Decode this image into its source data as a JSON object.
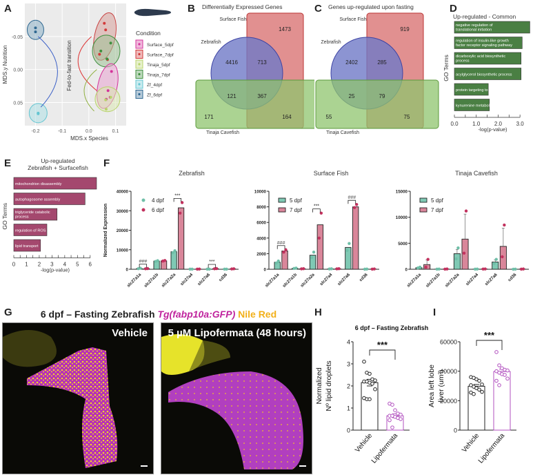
{
  "panel_labels": {
    "A": "A",
    "B": "B",
    "C": "C",
    "D": "D",
    "E": "E",
    "F": "F",
    "G": "G",
    "H": "H",
    "I": "I"
  },
  "chart_data": [
    {
      "id": "A",
      "type": "scatter",
      "title": "",
      "xlabel": "MDS.x  Species",
      "ylabel": "MDS.y  Nutrition",
      "xlim": [
        -0.24,
        0.14
      ],
      "ylim": [
        0.085,
        -0.1
      ],
      "xticks": [
        "-0.2",
        "-0.1",
        "0.0",
        "0.1"
      ],
      "xtick_values": [
        -0.2,
        -0.1,
        0.0,
        0.1
      ],
      "yticks": [
        "-0.05",
        "0.00",
        "0.05"
      ],
      "ytick_values": [
        -0.05,
        0.0,
        0.05
      ],
      "annotation": "Fed-to-fast transition",
      "legend_title": "Condition",
      "legend_position": "right",
      "series": [
        {
          "name": "Surface_5dpf",
          "color": "#d4339a",
          "points": [
            [
              0.085,
              0.003
            ],
            [
              0.072,
              0.032
            ],
            [
              0.065,
              0.045
            ],
            [
              0.08,
              0.042
            ]
          ]
        },
        {
          "name": "Surface_7dpf",
          "color": "#d23a3a",
          "points": [
            [
              0.058,
              -0.07
            ],
            [
              0.063,
              -0.06
            ],
            [
              0.04,
              -0.023
            ],
            [
              0.07,
              -0.015
            ]
          ]
        },
        {
          "name": "Tinaja_5dpf",
          "color": "#b8d36b",
          "points": [
            [
              0.065,
              0.06
            ],
            [
              0.063,
              0.046
            ],
            [
              0.082,
              0.042
            ]
          ]
        },
        {
          "name": "Tinaja_7dpf",
          "color": "#3f8f3f",
          "points": [
            [
              0.045,
              -0.028
            ],
            [
              0.082,
              -0.04
            ],
            [
              0.068,
              -0.016
            ]
          ]
        },
        {
          "name": "Zf_4dpf",
          "color": "#63c5d1",
          "points": [
            [
              -0.19,
              0.066
            ],
            [
              -0.19,
              0.067
            ]
          ]
        },
        {
          "name": "Zf_6dpf",
          "color": "#2f6891",
          "points": [
            [
              -0.2,
              -0.063
            ],
            [
              -0.2,
              -0.057
            ]
          ]
        }
      ]
    },
    {
      "id": "B",
      "type": "venn",
      "title": "Differentially Expressed Genes",
      "sets": [
        "Surface Fish",
        "Zebrafish",
        "Tinaja Cavefish"
      ],
      "regions": {
        "surface_only": 1473,
        "zebrafish_only": 4416,
        "zebrafish_surface": 713,
        "zebrafish_tinaja": 121,
        "all_three": 367,
        "tinaja_only": 171,
        "surface_tinaja": 164
      }
    },
    {
      "id": "C",
      "type": "venn",
      "title": "Genes up-regulated upon fasting",
      "sets": [
        "Surface Fish",
        "Zebrafish",
        "Tinaja Cavefish"
      ],
      "regions": {
        "surface_only": 919,
        "zebrafish_only": 2402,
        "zebrafish_surface": 285,
        "zebrafish_tinaja": 25,
        "all_three": 79,
        "tinaja_only": 55,
        "surface_tinaja": 75
      }
    },
    {
      "id": "D",
      "type": "bar",
      "orientation": "horizontal",
      "title": "Up-regulated - Common",
      "ylabel": "GO Terms",
      "xlabel": "-log(p-value)",
      "xlim": [
        0,
        3.5
      ],
      "xticks": [
        "0.0",
        "1.0",
        "2.0",
        "3.0"
      ],
      "xtick_values": [
        0,
        1,
        2,
        3
      ],
      "color": "#4a7f43",
      "categories": [
        "negative regulation of translational initiation",
        "regulation of insulin-like growth factor receptor signaling pathway",
        "dicarboxylic acid biosynthetic process",
        "acylglycerol biosynthetic process",
        "protein targeting to peroxisome",
        "kynurenine metabolism"
      ],
      "values": [
        3.45,
        3.1,
        3.05,
        3.05,
        1.55,
        1.6
      ]
    },
    {
      "id": "E",
      "type": "bar",
      "orientation": "horizontal",
      "title": "Up-regulated\nZebrafish + Surfacefish",
      "title_lines": [
        "Up-regulated",
        "Zebrafish + Surfacefish"
      ],
      "ylabel": "GO Terms",
      "xlabel": "-log(p-value)",
      "xlim": [
        0,
        6.5
      ],
      "xticks": [
        "0",
        "1",
        "2",
        "3",
        "4",
        "5",
        "6"
      ],
      "xtick_values": [
        0,
        1,
        2,
        3,
        4,
        5,
        6
      ],
      "color": "#a4486e",
      "categories": [
        "mitochondrion disassembly",
        "autophagosome assembly",
        "triglyceride catabolic process",
        "regulation of ROS",
        "lipid transport"
      ],
      "values": [
        6.5,
        5.6,
        3.4,
        2.6,
        2.1
      ]
    },
    {
      "id": "F1",
      "type": "bar",
      "title": "Zebrafish",
      "ylabel": "Normalized Expression",
      "ylim": [
        0,
        40000
      ],
      "yticks": [
        "0",
        "10000",
        "20000",
        "30000",
        "40000"
      ],
      "ytick_values": [
        0,
        10000,
        20000,
        30000,
        40000
      ],
      "categories": [
        "slc27a1a",
        "slc27a1b",
        "slc27a2a",
        "slc27a4",
        "slc27a6",
        "cd36"
      ],
      "legend_style": "dot",
      "series": [
        {
          "name": "4 dpf",
          "color": "#7fc9b4",
          "values": [
            400,
            4200,
            9000,
            60,
            60,
            60
          ],
          "points": [
            [
              300,
              500
            ],
            [
              4000,
              4400
            ],
            [
              8500,
              9500
            ],
            [
              50,
              80
            ],
            [
              50,
              80
            ],
            [
              50,
              80
            ]
          ]
        },
        {
          "name": "6 dpf",
          "color": "#d9869a",
          "dot_color": "#c2315e",
          "values": [
            300,
            4300,
            31500,
            90,
            300,
            200
          ],
          "points": [
            [
              250,
              350
            ],
            [
              4200,
              4500
            ],
            [
              28800,
              34200
            ],
            [
              80,
              100
            ],
            [
              250,
              350
            ],
            [
              150,
              250
            ]
          ]
        }
      ],
      "significance": [
        {
          "category": "slc27a1a",
          "label": "###"
        },
        {
          "category": "slc27a2a",
          "label": "***"
        },
        {
          "category": "slc27a6",
          "label": "***"
        }
      ]
    },
    {
      "id": "F2",
      "type": "bar",
      "title": "Surface Fish",
      "ylim": [
        0,
        10000
      ],
      "yticks": [
        "0",
        "2000",
        "4000",
        "6000",
        "8000",
        "10000"
      ],
      "ytick_values": [
        0,
        2000,
        4000,
        6000,
        8000,
        10000
      ],
      "categories": [
        "slc27a1a",
        "slc27a1b",
        "slc27a2a",
        "slc27a4",
        "slc27a6",
        "cd36"
      ],
      "legend_style": "box",
      "series": [
        {
          "name": "5 dpf",
          "color": "#7fc9b4",
          "values": [
            900,
            120,
            1800,
            50,
            2800,
            20
          ],
          "points": [
            [
              800,
              1050
            ],
            [
              100,
              150
            ],
            [
              1500,
              2200
            ],
            [
              40,
              60
            ],
            [
              2400,
              3300
            ],
            [
              10,
              30
            ]
          ]
        },
        {
          "name": "7 dpf",
          "color": "#d9869a",
          "dot_color": "#c2315e",
          "values": [
            2350,
            60,
            5700,
            60,
            8000,
            30
          ],
          "points": [
            [
              2200,
              2500
            ],
            [
              50,
              70
            ],
            [
              4000,
              7200
            ],
            [
              50,
              70
            ],
            [
              7900,
              8300
            ],
            [
              20,
              40
            ]
          ]
        }
      ],
      "significance": [
        {
          "category": "slc27a1a",
          "label": "###"
        },
        {
          "category": "slc27a2a",
          "label": "***"
        },
        {
          "category": "slc27a6",
          "label": "###"
        }
      ]
    },
    {
      "id": "F3",
      "type": "bar",
      "title": "Tinaja Cavefish",
      "ylim": [
        0,
        15000
      ],
      "yticks": [
        "0",
        "5000",
        "10000",
        "15000"
      ],
      "ytick_values": [
        0,
        5000,
        10000,
        15000
      ],
      "categories": [
        "slc27a1a",
        "slc27a1b",
        "slc27a2a",
        "slc27a4",
        "slc27a6",
        "cd36"
      ],
      "legend_style": "box",
      "series": [
        {
          "name": "5 dpf",
          "color": "#7fc9b4",
          "values": [
            300,
            30,
            3000,
            30,
            1400,
            20
          ],
          "err": [
            100,
            20,
            800,
            20,
            400,
            10
          ],
          "points": [
            [
              250,
              400
            ],
            [
              20,
              40
            ],
            [
              2000,
              4100
            ],
            [
              20,
              40
            ],
            [
              1100,
              1900
            ],
            [
              10,
              30
            ]
          ]
        },
        {
          "name": "7 dpf",
          "color": "#d9869a",
          "dot_color": "#c2315e",
          "values": [
            900,
            40,
            5800,
            50,
            4400,
            40
          ],
          "err": [
            900,
            20,
            4800,
            20,
            3500,
            20
          ],
          "points": [
            [
              400,
              1900
            ],
            [
              30,
              50
            ],
            [
              3100,
              11200
            ],
            [
              40,
              60
            ],
            [
              2400,
              8500
            ],
            [
              30,
              50
            ]
          ]
        }
      ],
      "significance": []
    },
    {
      "id": "H",
      "type": "bar",
      "title": "6 dpf – Fasting Zebrafish",
      "ylabel_lines": [
        "Normalized",
        "Nº lipid droplets"
      ],
      "ylim": [
        0,
        4
      ],
      "yticks": [
        "0",
        "1",
        "2",
        "3",
        "4"
      ],
      "ytick_values": [
        0,
        1,
        2,
        3,
        4
      ],
      "categories": [
        "Vehicle",
        "Lipofermata"
      ],
      "colors": [
        "#222222",
        "#b14fbf"
      ],
      "values": [
        2.15,
        0.65
      ],
      "sem": [
        0.15,
        0.09
      ],
      "points": [
        [
          3.1,
          2.6,
          2.55,
          2.3,
          2.25,
          2.2,
          2.2,
          2.15,
          2.1,
          1.85,
          1.45,
          1.4,
          1.4
        ],
        [
          1.2,
          1.15,
          0.9,
          0.75,
          0.7,
          0.65,
          0.65,
          0.6,
          0.55,
          0.5,
          0.45,
          0.12
        ]
      ],
      "significance": "***"
    },
    {
      "id": "I",
      "type": "bar",
      "ylabel_lines": [
        "Area left lobe",
        "liver (um²)"
      ],
      "ylim": [
        0,
        60000
      ],
      "yticks": [
        "0",
        "20000",
        "40000",
        "60000"
      ],
      "ytick_values": [
        0,
        20000,
        40000,
        60000
      ],
      "categories": [
        "Vehicle",
        "Lipofermata"
      ],
      "colors": [
        "#222222",
        "#b14fbf"
      ],
      "values": [
        29800,
        39800
      ],
      "sem": [
        1200,
        1600
      ],
      "points": [
        [
          36000,
          35500,
          34500,
          33500,
          31000,
          30500,
          29500,
          28500,
          27500,
          26000,
          25500,
          24500
        ],
        [
          53000,
          44000,
          42000,
          41000,
          40500,
          40000,
          39000,
          38000,
          37500,
          35000,
          33500,
          30500
        ]
      ],
      "significance": "***"
    }
  ],
  "panel_G": {
    "title_prefix": "6 dpf – Fasting Zebrafish ",
    "title_gfp": "Tg(fabp10a:GFP)",
    "title_nile": " Nile Red",
    "gfp_color": "#c0249e",
    "nile_color": "#f2b019",
    "image_left_label": "Vehicle",
    "image_right_label": "5 µM Lipofermata (48 hours)"
  },
  "fish_icon": "zebrafish-larva-icon"
}
